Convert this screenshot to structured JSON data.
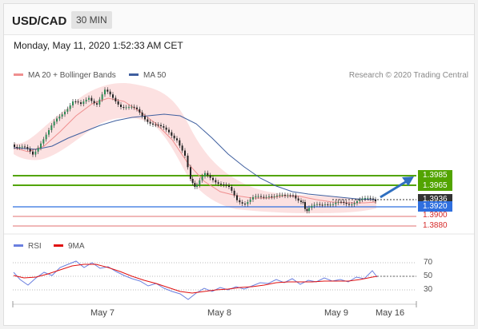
{
  "header": {
    "pair": "USD/CAD",
    "timeframe": "30 MIN"
  },
  "timestamp": "Monday, May 11, 2020 1:52:33 AM CET",
  "legend": {
    "ma20": "MA 20 + Bollinger Bands",
    "ma50": "MA 50",
    "credit": "Research © 2020 Trading Central",
    "rsi": "RSI",
    "ma9": "9MA"
  },
  "colors": {
    "ma20": "#ef8f8f",
    "ma50": "#3f5f9f",
    "green": "#52a400",
    "blue": "#2f6fdf",
    "red": "#d62b2b",
    "dark": "#333333",
    "rsi": "#6a7fdf",
    "ma9": "#e01010"
  },
  "levels": {
    "r2": "1.3985",
    "r1": "1.3965",
    "current": "1.3936",
    "pivot": "1.3920",
    "s1": "1.3900",
    "s2": "1.3880"
  },
  "rsi_axis": [
    "70",
    "50",
    "30"
  ],
  "x_axis": [
    "May 7",
    "May 8",
    "May 9",
    "May 16"
  ]
}
